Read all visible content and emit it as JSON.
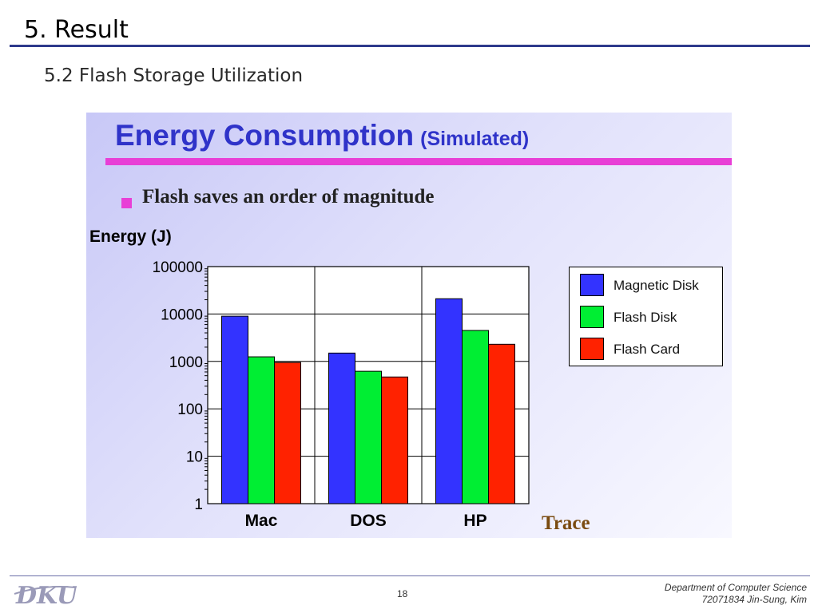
{
  "slide": {
    "title": "5. Result",
    "subtitle": "5.2 Flash Storage Utilization",
    "panel_title": "Energy Consumption",
    "panel_title_paren": "(Simulated)",
    "bullet": "Flash saves an order of magnitude"
  },
  "colors": {
    "accent_blue": "#2f33c9",
    "accent_magenta": "#e83fd6",
    "title_rule": "#2e3a8c"
  },
  "chart_data": {
    "type": "bar",
    "ylabel": "Energy (J)",
    "xlabel": "Trace",
    "yscale": "log",
    "ylim": [
      1,
      100000
    ],
    "y_ticks": [
      "100000",
      "10000",
      "1000",
      "100",
      "10",
      "1"
    ],
    "categories": [
      "Mac",
      "DOS",
      "HP"
    ],
    "series": [
      {
        "name": "Magnetic Disk",
        "color": "#3333ff",
        "values": [
          9000,
          1500,
          21000
        ]
      },
      {
        "name": "Flash Disk",
        "color": "#00ee33",
        "values": [
          1250,
          620,
          4500
        ]
      },
      {
        "name": "Flash Card",
        "color": "#ff2200",
        "values": [
          950,
          470,
          2300
        ]
      }
    ],
    "grid": true,
    "legend_position": "right"
  },
  "footer": {
    "logo_text": "DKU",
    "page_number": "18",
    "dept": "Department of Computer Science",
    "author": "72071834 Jin-Sung, Kim"
  }
}
